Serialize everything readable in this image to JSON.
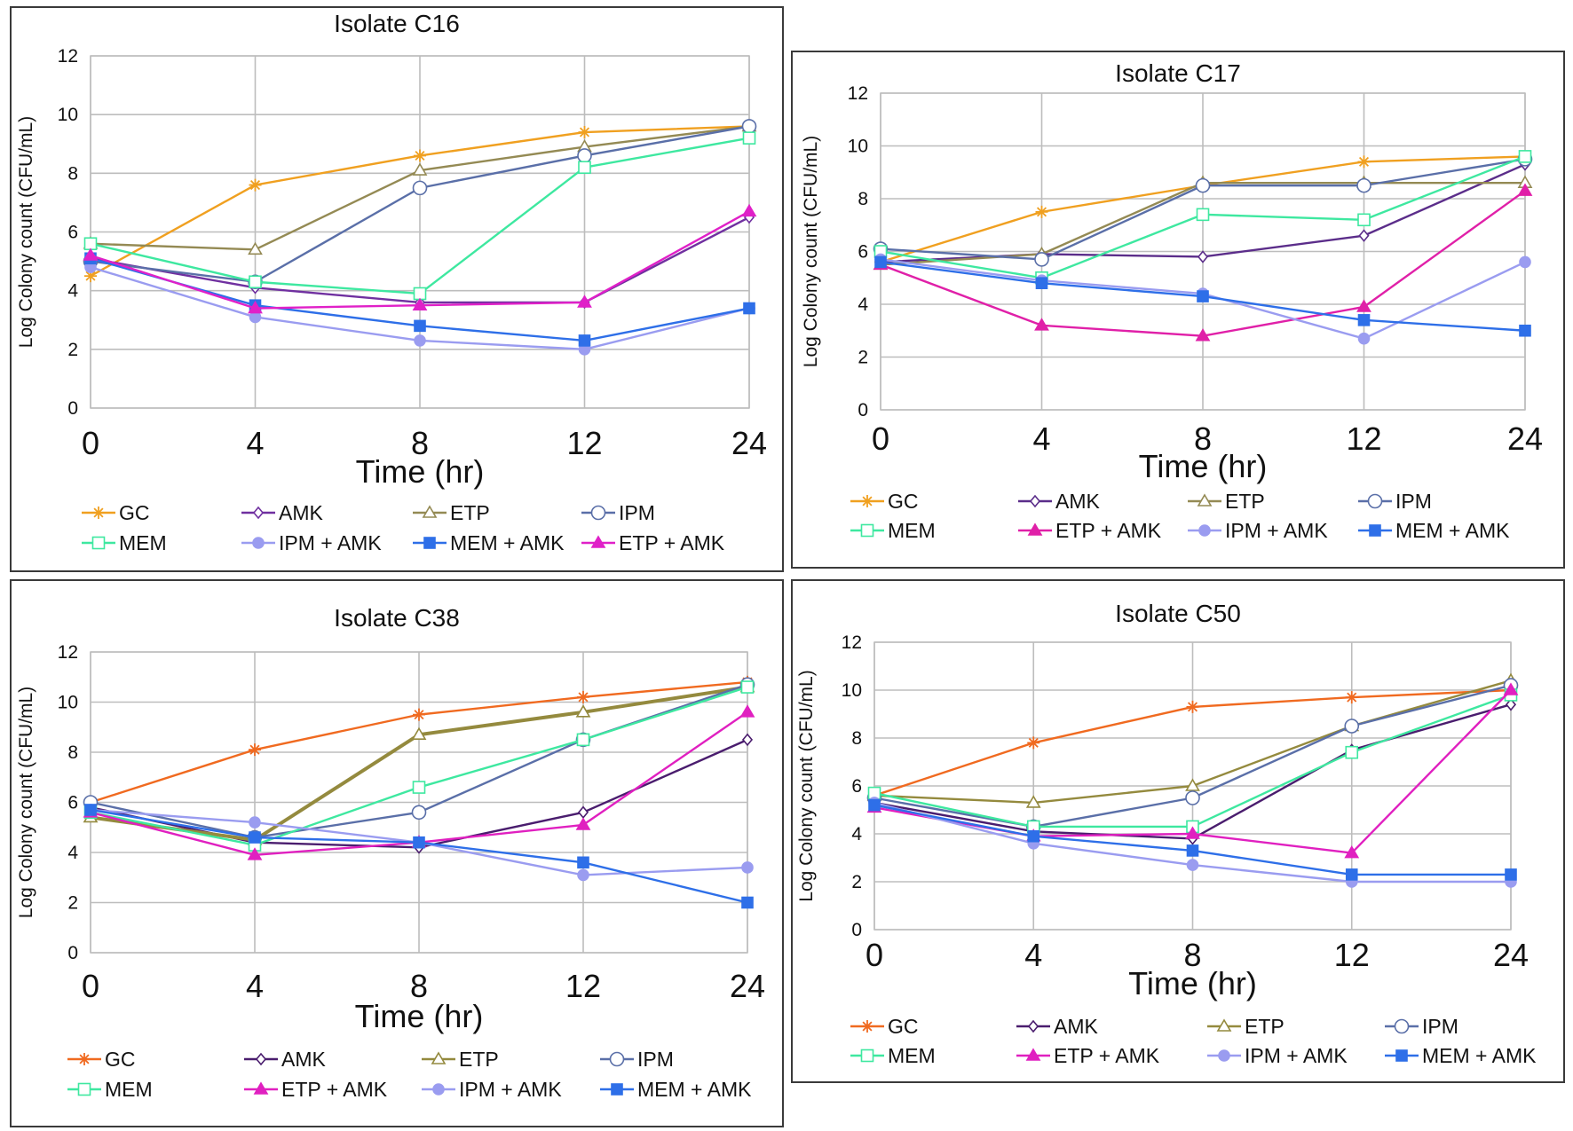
{
  "chart_data": [
    {
      "type": "line",
      "title": "Isolate C16",
      "xlabel": "Time (hr)",
      "ylabel": "Log Colony count (CFU/mL)",
      "categories": [
        "0",
        "4",
        "8",
        "12",
        "24"
      ],
      "yticks": [
        "0",
        "2",
        "4",
        "6",
        "8",
        "10",
        "12"
      ],
      "ylim": [
        0,
        12
      ],
      "series": [
        {
          "name": "GC",
          "color": "#f0a020",
          "marker": "star",
          "values": [
            4.5,
            7.6,
            8.6,
            9.4,
            9.6
          ]
        },
        {
          "name": "AMK",
          "color": "#7030a0",
          "marker": "diamond",
          "values": [
            5.1,
            4.1,
            3.6,
            3.6,
            6.5
          ]
        },
        {
          "name": "ETP",
          "color": "#948a54",
          "marker": "triangle-open",
          "values": [
            5.6,
            5.4,
            8.1,
            8.9,
            9.6
          ]
        },
        {
          "name": "IPM",
          "color": "#5a6fa8",
          "marker": "circle-open",
          "values": [
            5.0,
            4.3,
            7.5,
            8.6,
            9.6
          ]
        },
        {
          "name": "MEM",
          "color": "#3ee8a0",
          "marker": "square-open",
          "values": [
            5.6,
            4.3,
            3.9,
            8.2,
            9.2
          ]
        },
        {
          "name": "IPM + AMK",
          "color": "#9a9cf0",
          "marker": "circle",
          "values": [
            4.8,
            3.1,
            2.3,
            2.0,
            3.4
          ]
        },
        {
          "name": "MEM + AMK",
          "color": "#2e6fe8",
          "marker": "square",
          "values": [
            5.1,
            3.5,
            2.8,
            2.3,
            3.4
          ]
        },
        {
          "name": "ETP + AMK",
          "color": "#e020c8",
          "marker": "triangle",
          "values": [
            5.2,
            3.4,
            3.5,
            3.6,
            6.7
          ]
        }
      ]
    },
    {
      "type": "line",
      "title": "Isolate C17",
      "xlabel": "Time (hr)",
      "ylabel": "Log Colony count (CFU/mL)",
      "categories": [
        "0",
        "4",
        "8",
        "12",
        "24"
      ],
      "yticks": [
        "0",
        "2",
        "4",
        "6",
        "8",
        "10",
        "12"
      ],
      "ylim": [
        0,
        12
      ],
      "series": [
        {
          "name": "GC",
          "color": "#f0a020",
          "marker": "star",
          "values": [
            5.6,
            7.5,
            8.5,
            9.4,
            9.6
          ]
        },
        {
          "name": "AMK",
          "color": "#5b2d8a",
          "marker": "diamond",
          "values": [
            5.6,
            5.9,
            5.8,
            6.6,
            9.3
          ]
        },
        {
          "name": "ETP",
          "color": "#948a54",
          "marker": "triangle-open",
          "values": [
            5.5,
            5.9,
            8.6,
            8.6,
            8.6
          ]
        },
        {
          "name": "IPM",
          "color": "#5a6fa8",
          "marker": "circle-open",
          "values": [
            6.1,
            5.7,
            8.5,
            8.5,
            9.5
          ]
        },
        {
          "name": "MEM",
          "color": "#3ee8a0",
          "marker": "square-open",
          "values": [
            6.0,
            5.0,
            7.4,
            7.2,
            9.6
          ]
        },
        {
          "name": "ETP + AMK",
          "color": "#e020a8",
          "marker": "triangle",
          "values": [
            5.5,
            3.2,
            2.8,
            3.9,
            8.3
          ]
        },
        {
          "name": "IPM + AMK",
          "color": "#9a9cf0",
          "marker": "circle",
          "values": [
            5.7,
            4.9,
            4.4,
            2.7,
            5.6
          ]
        },
        {
          "name": "MEM + AMK",
          "color": "#2e6fe8",
          "marker": "square",
          "values": [
            5.6,
            4.8,
            4.3,
            3.4,
            3.0
          ]
        }
      ]
    },
    {
      "type": "line",
      "title": "Isolate C38",
      "xlabel": "Time (hr)",
      "ylabel": "Log Colony count (CFU/mL)",
      "categories": [
        "0",
        "4",
        "8",
        "12",
        "24"
      ],
      "yticks": [
        "0",
        "2",
        "4",
        "6",
        "8",
        "10",
        "12"
      ],
      "ylim": [
        0,
        12
      ],
      "series": [
        {
          "name": "GC",
          "color": "#f06a20",
          "marker": "star",
          "values": [
            6.0,
            8.1,
            9.5,
            10.2,
            10.8
          ]
        },
        {
          "name": "AMK",
          "color": "#4a1d6e",
          "marker": "diamond",
          "values": [
            5.8,
            4.4,
            4.2,
            5.6,
            8.5
          ]
        },
        {
          "name": "ETP",
          "color": "#948a3e",
          "marker": "triangle-open",
          "values": [
            5.4,
            4.5,
            8.7,
            9.6,
            10.6
          ]
        },
        {
          "name": "IPM",
          "color": "#5a6fa8",
          "marker": "circle-open",
          "values": [
            6.0,
            4.6,
            5.6,
            8.5,
            10.7
          ]
        },
        {
          "name": "MEM",
          "color": "#3ee8a0",
          "marker": "square-open",
          "values": [
            5.6,
            4.3,
            6.6,
            8.5,
            10.6
          ]
        },
        {
          "name": "ETP + AMK",
          "color": "#e020c0",
          "marker": "triangle",
          "values": [
            5.6,
            3.9,
            4.4,
            5.1,
            9.6
          ]
        },
        {
          "name": "IPM + AMK",
          "color": "#9a9cf0",
          "marker": "circle",
          "values": [
            5.7,
            5.2,
            4.4,
            3.1,
            3.4
          ]
        },
        {
          "name": "MEM + AMK",
          "color": "#2e6fe8",
          "marker": "square",
          "values": [
            5.7,
            4.6,
            4.4,
            3.6,
            2.0
          ]
        }
      ]
    },
    {
      "type": "line",
      "title": "Isolate C50",
      "xlabel": "Time (hr)",
      "ylabel": "Log Colony count (CFU/mL)",
      "categories": [
        "0",
        "4",
        "8",
        "12",
        "24"
      ],
      "yticks": [
        "0",
        "2",
        "4",
        "6",
        "8",
        "10",
        "12"
      ],
      "ylim": [
        0,
        12
      ],
      "series": [
        {
          "name": "GC",
          "color": "#f06a20",
          "marker": "star",
          "values": [
            5.6,
            7.8,
            9.3,
            9.7,
            10.0
          ]
        },
        {
          "name": "AMK",
          "color": "#4a1d6e",
          "marker": "diamond",
          "values": [
            5.3,
            4.1,
            3.8,
            7.5,
            9.4
          ]
        },
        {
          "name": "ETP",
          "color": "#948a3e",
          "marker": "triangle-open",
          "values": [
            5.6,
            5.3,
            6.0,
            8.5,
            10.4
          ]
        },
        {
          "name": "IPM",
          "color": "#5a6fa8",
          "marker": "circle-open",
          "values": [
            5.5,
            4.3,
            5.5,
            8.5,
            10.2
          ]
        },
        {
          "name": "MEM",
          "color": "#3ee8a0",
          "marker": "square-open",
          "values": [
            5.7,
            4.3,
            4.3,
            7.4,
            9.8
          ]
        },
        {
          "name": "ETP + AMK",
          "color": "#e020c0",
          "marker": "triangle",
          "values": [
            5.1,
            3.9,
            4.0,
            3.2,
            10.0
          ]
        },
        {
          "name": "IPM + AMK",
          "color": "#9a9cf0",
          "marker": "circle",
          "values": [
            5.3,
            3.6,
            2.7,
            2.0,
            2.0
          ]
        },
        {
          "name": "MEM + AMK",
          "color": "#2e6fe8",
          "marker": "square",
          "values": [
            5.2,
            3.9,
            3.3,
            2.3,
            2.3
          ]
        }
      ]
    }
  ]
}
